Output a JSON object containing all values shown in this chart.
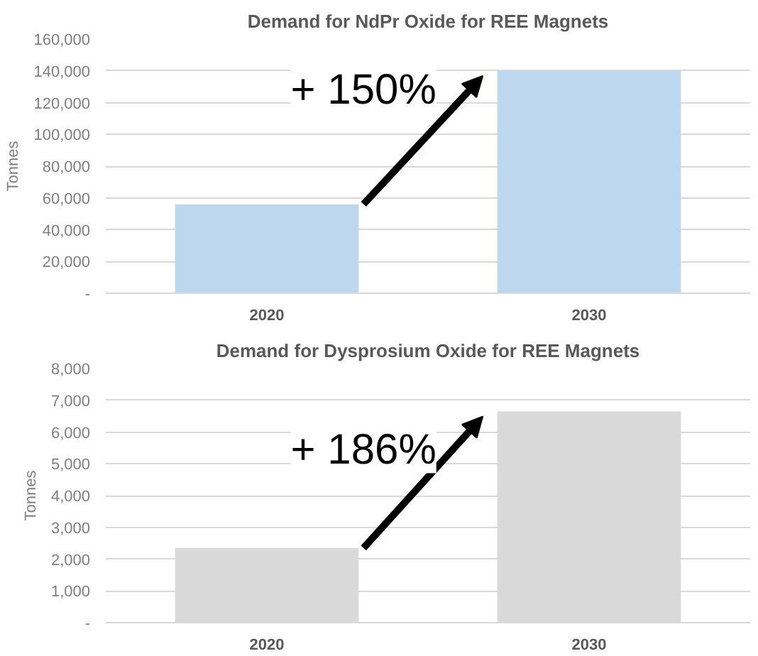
{
  "chart_data": [
    {
      "type": "bar",
      "title": "Demand for NdPr Oxide for REE Magnets",
      "ylabel": "Tonnes",
      "categories": [
        "2020",
        "2030"
      ],
      "values": [
        56000,
        140000
      ],
      "color": "#bdd7ee",
      "ylim": [
        0,
        160000
      ],
      "yticks": [
        {
          "value": 0,
          "label": "-"
        },
        {
          "value": 20000,
          "label": "20,000"
        },
        {
          "value": 40000,
          "label": "40,000"
        },
        {
          "value": 60000,
          "label": "60,000"
        },
        {
          "value": 80000,
          "label": "80,000"
        },
        {
          "value": 100000,
          "label": "100,000"
        },
        {
          "value": 120000,
          "label": "120,000"
        },
        {
          "value": 140000,
          "label": "140,000"
        },
        {
          "value": 160000,
          "label": "160,000"
        }
      ],
      "grid": "y",
      "annotations": [
        "+ 150%"
      ]
    },
    {
      "type": "bar",
      "title": "Demand for Dysprosium Oxide for REE Magnets",
      "ylabel": "Tonnes",
      "categories": [
        "2020",
        "2030"
      ],
      "values": [
        2350,
        6650
      ],
      "color": "#d9d9d9",
      "ylim": [
        0,
        8000
      ],
      "yticks": [
        {
          "value": 0,
          "label": "-"
        },
        {
          "value": 1000,
          "label": "1,000"
        },
        {
          "value": 2000,
          "label": "2,000"
        },
        {
          "value": 3000,
          "label": "3,000"
        },
        {
          "value": 4000,
          "label": "4,000"
        },
        {
          "value": 5000,
          "label": "5,000"
        },
        {
          "value": 6000,
          "label": "6,000"
        },
        {
          "value": 7000,
          "label": "7,000"
        },
        {
          "value": 8000,
          "label": "8,000"
        }
      ],
      "grid": "y",
      "annotations": [
        "+ 186%"
      ]
    }
  ]
}
